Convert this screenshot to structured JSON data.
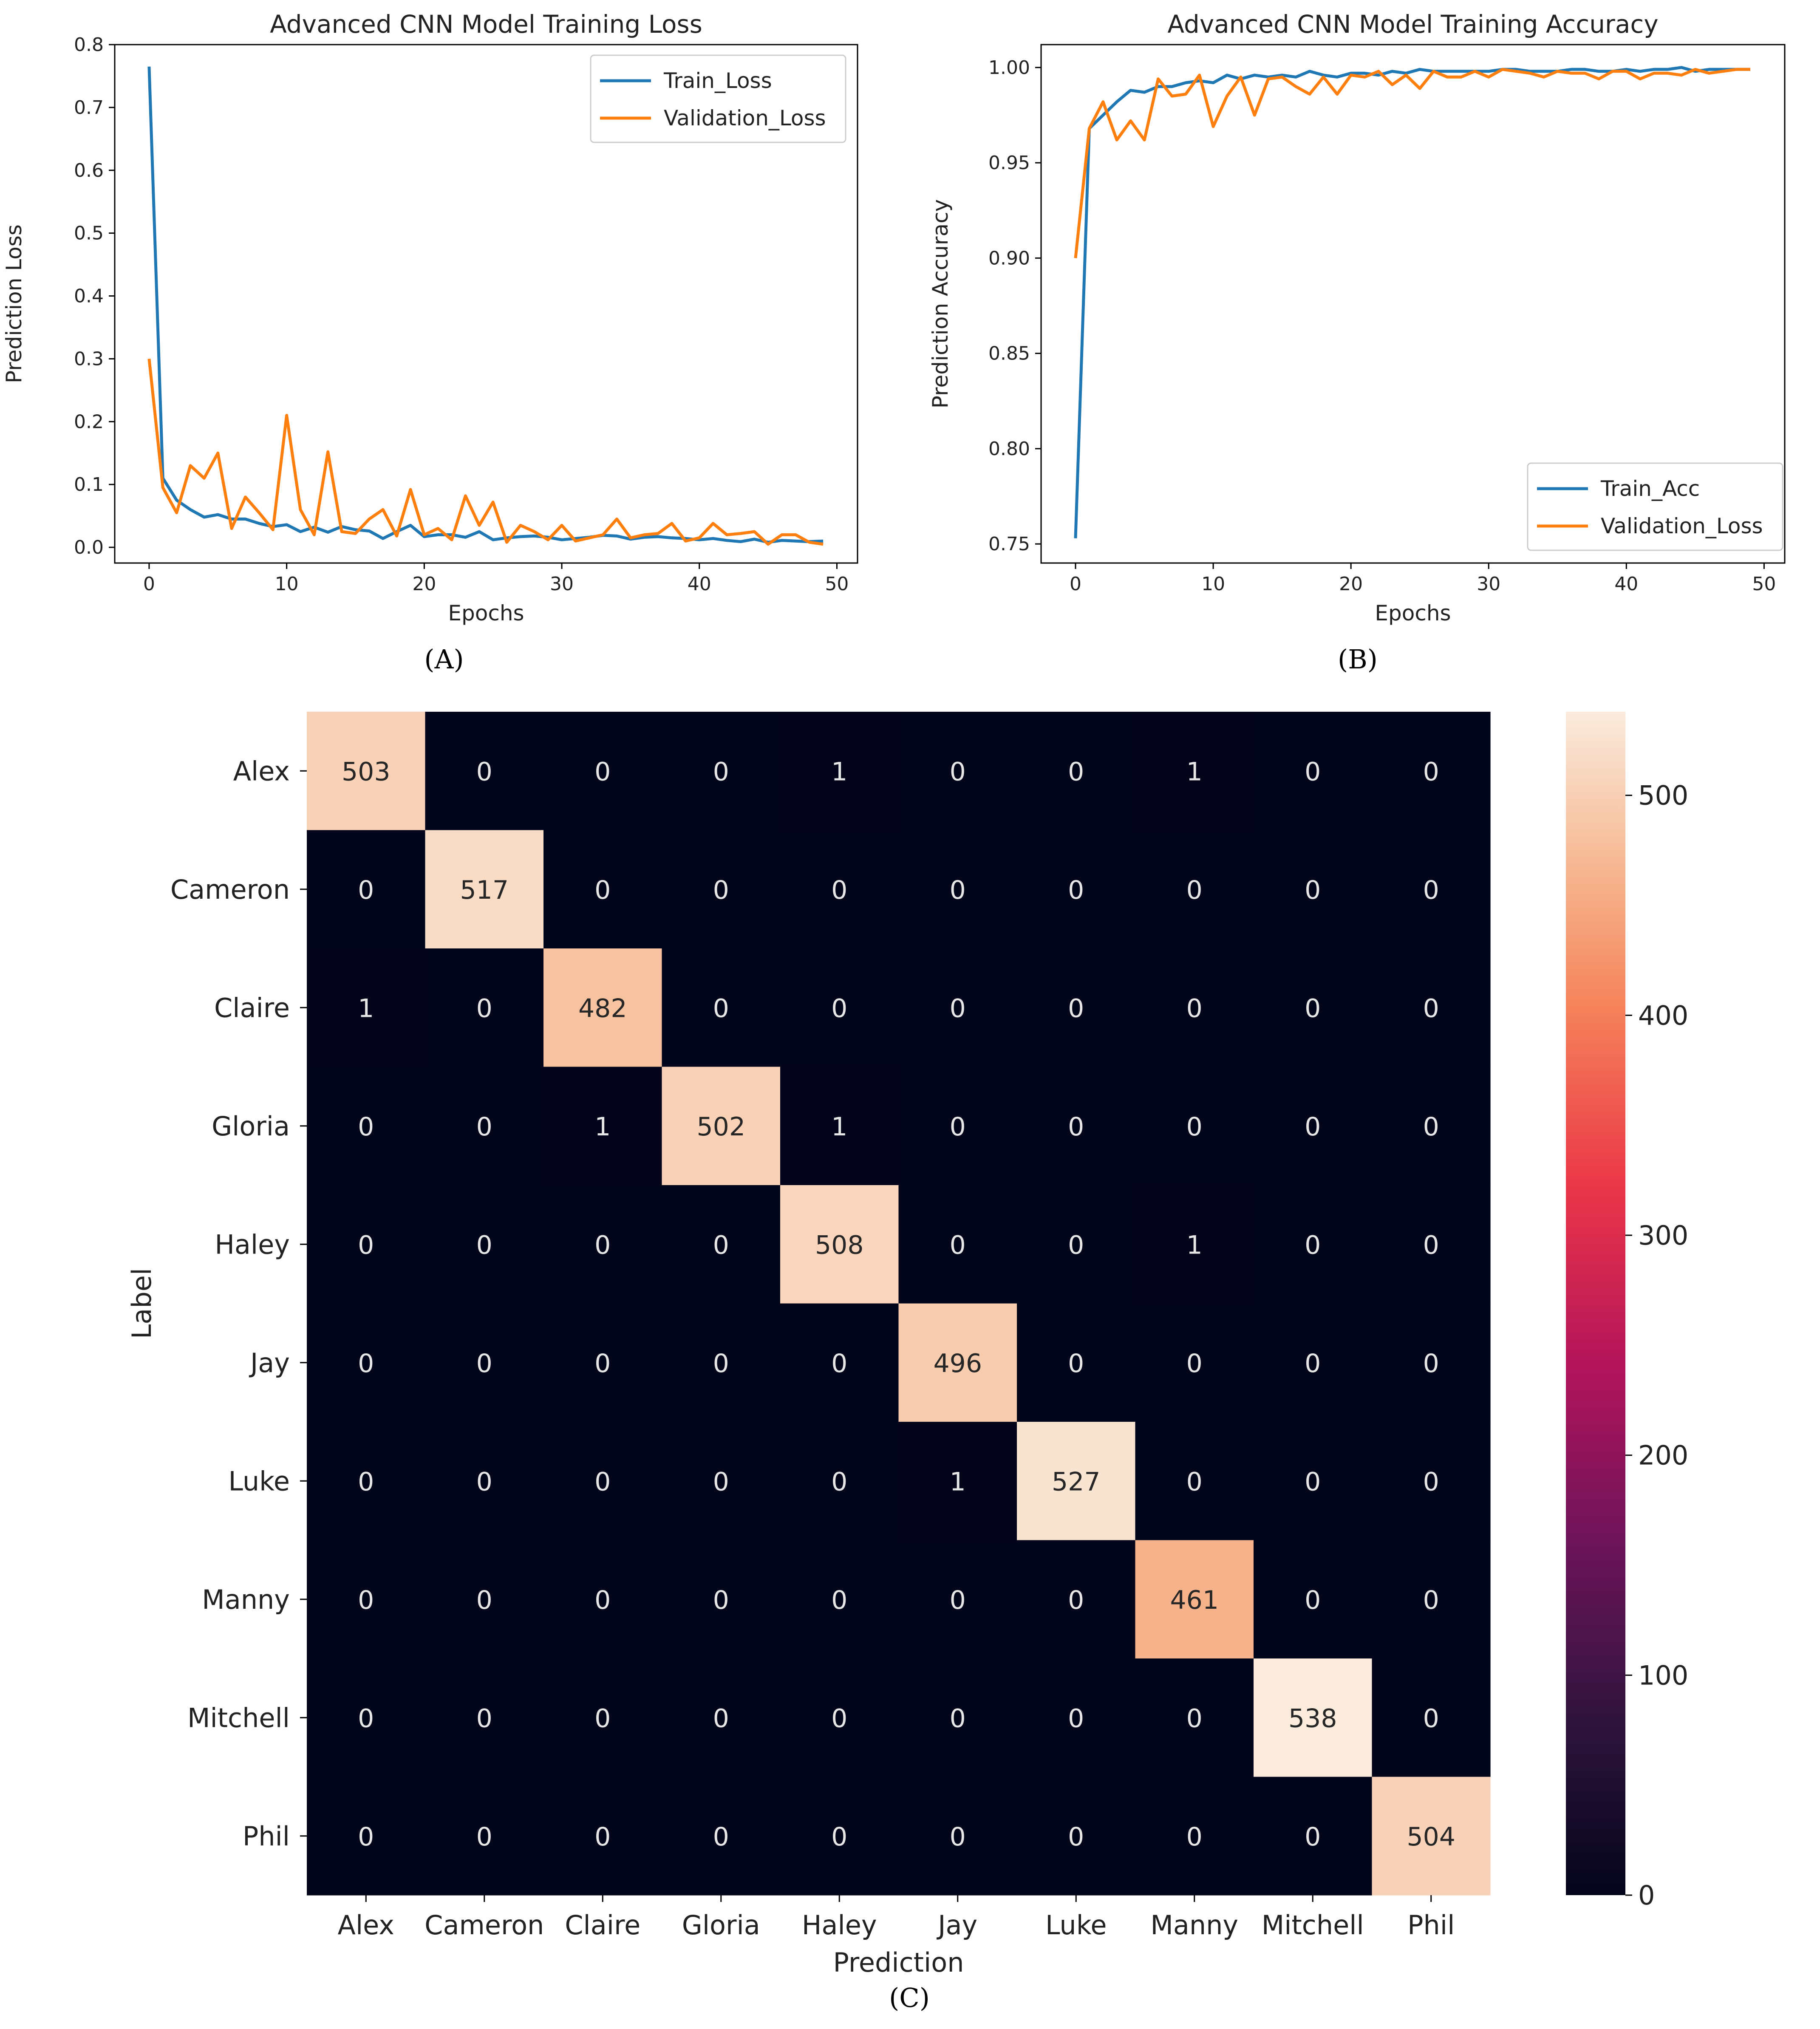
{
  "colors": {
    "train": "#1f77b4",
    "validation": "#ff7f0e"
  },
  "chart_data": [
    {
      "id": "A",
      "type": "line",
      "title": "Advanced CNN Model Training Loss",
      "xlabel": "Epochs",
      "ylabel": "Prediction Loss",
      "xlim": [
        -2.5,
        51.5
      ],
      "ylim": [
        -0.025,
        0.8
      ],
      "xticks": [
        0,
        10,
        20,
        30,
        40,
        50
      ],
      "yticks": [
        0.0,
        0.1,
        0.2,
        0.3,
        0.4,
        0.5,
        0.6,
        0.7,
        0.8
      ],
      "ytick_labels": [
        "0.0",
        "0.1",
        "0.2",
        "0.3",
        "0.4",
        "0.5",
        "0.6",
        "0.7",
        "0.8"
      ],
      "legend_position": "top-right",
      "series": [
        {
          "name": "Train_Loss",
          "color": "#1f77b4",
          "values": [
            0.765,
            0.11,
            0.075,
            0.06,
            0.048,
            0.052,
            0.045,
            0.045,
            0.038,
            0.033,
            0.036,
            0.025,
            0.032,
            0.024,
            0.033,
            0.028,
            0.026,
            0.014,
            0.025,
            0.035,
            0.017,
            0.02,
            0.02,
            0.016,
            0.025,
            0.012,
            0.015,
            0.017,
            0.018,
            0.016,
            0.012,
            0.014,
            0.016,
            0.019,
            0.018,
            0.013,
            0.016,
            0.017,
            0.015,
            0.014,
            0.012,
            0.014,
            0.011,
            0.009,
            0.013,
            0.008,
            0.011,
            0.01,
            0.009,
            0.01
          ]
        },
        {
          "name": "Validation_Loss",
          "color": "#ff7f0e",
          "values": [
            0.3,
            0.095,
            0.055,
            0.13,
            0.11,
            0.15,
            0.03,
            0.08,
            0.055,
            0.028,
            0.21,
            0.06,
            0.02,
            0.152,
            0.025,
            0.022,
            0.045,
            0.06,
            0.018,
            0.092,
            0.02,
            0.03,
            0.012,
            0.082,
            0.035,
            0.072,
            0.008,
            0.035,
            0.025,
            0.012,
            0.035,
            0.01,
            0.015,
            0.02,
            0.045,
            0.015,
            0.02,
            0.022,
            0.038,
            0.01,
            0.015,
            0.038,
            0.02,
            0.022,
            0.025,
            0.005,
            0.02,
            0.02,
            0.008,
            0.005
          ]
        }
      ]
    },
    {
      "id": "B",
      "type": "line",
      "title": "Advanced CNN Model Training Accuracy",
      "xlabel": "Epochs",
      "ylabel": "Prediction Accuracy",
      "xlim": [
        -2.5,
        51.5
      ],
      "ylim": [
        0.74,
        1.012
      ],
      "xticks": [
        0,
        10,
        20,
        30,
        40,
        50
      ],
      "yticks": [
        0.75,
        0.8,
        0.85,
        0.9,
        0.95,
        1.0
      ],
      "ytick_labels": [
        "0.75",
        "0.80",
        "0.85",
        "0.90",
        "0.95",
        "1.00"
      ],
      "legend_position": "bottom-right",
      "series": [
        {
          "name": "Train_Acc",
          "color": "#1f77b4",
          "values": [
            0.753,
            0.968,
            0.975,
            0.982,
            0.988,
            0.987,
            0.99,
            0.99,
            0.992,
            0.993,
            0.992,
            0.996,
            0.994,
            0.996,
            0.995,
            0.996,
            0.995,
            0.998,
            0.996,
            0.995,
            0.997,
            0.997,
            0.996,
            0.998,
            0.997,
            0.999,
            0.998,
            0.998,
            0.998,
            0.998,
            0.998,
            0.999,
            0.999,
            0.998,
            0.998,
            0.998,
            0.999,
            0.999,
            0.998,
            0.998,
            0.999,
            0.998,
            0.999,
            0.999,
            1.0,
            0.998,
            0.999,
            0.999,
            0.999,
            0.999
          ]
        },
        {
          "name": "Validation_Loss",
          "color": "#ff7f0e",
          "values": [
            0.9,
            0.968,
            0.982,
            0.962,
            0.972,
            0.962,
            0.994,
            0.985,
            0.986,
            0.996,
            0.969,
            0.985,
            0.995,
            0.975,
            0.994,
            0.995,
            0.99,
            0.986,
            0.995,
            0.986,
            0.996,
            0.995,
            0.998,
            0.991,
            0.996,
            0.989,
            0.998,
            0.995,
            0.995,
            0.998,
            0.995,
            0.999,
            0.998,
            0.997,
            0.995,
            0.998,
            0.997,
            0.997,
            0.994,
            0.998,
            0.998,
            0.994,
            0.997,
            0.997,
            0.996,
            0.999,
            0.997,
            0.998,
            0.999,
            0.999
          ]
        }
      ]
    },
    {
      "id": "C",
      "type": "heatmap",
      "xlabel": "Prediction",
      "ylabel": "Label",
      "labels": [
        "Alex",
        "Cameron",
        "Claire",
        "Gloria",
        "Haley",
        "Jay",
        "Luke",
        "Manny",
        "Mitchell",
        "Phil"
      ],
      "matrix": [
        [
          503,
          0,
          0,
          0,
          1,
          0,
          0,
          1,
          0,
          0
        ],
        [
          0,
          517,
          0,
          0,
          0,
          0,
          0,
          0,
          0,
          0
        ],
        [
          1,
          0,
          482,
          0,
          0,
          0,
          0,
          0,
          0,
          0
        ],
        [
          0,
          0,
          1,
          502,
          1,
          0,
          0,
          0,
          0,
          0
        ],
        [
          0,
          0,
          0,
          0,
          508,
          0,
          0,
          1,
          0,
          0
        ],
        [
          0,
          0,
          0,
          0,
          0,
          496,
          0,
          0,
          0,
          0
        ],
        [
          0,
          0,
          0,
          0,
          0,
          1,
          527,
          0,
          0,
          0
        ],
        [
          0,
          0,
          0,
          0,
          0,
          0,
          0,
          461,
          0,
          0
        ],
        [
          0,
          0,
          0,
          0,
          0,
          0,
          0,
          0,
          538,
          0
        ],
        [
          0,
          0,
          0,
          0,
          0,
          0,
          0,
          0,
          0,
          504
        ]
      ],
      "colorbar": {
        "min": 0,
        "max": 538,
        "ticks": [
          0,
          100,
          200,
          300,
          400,
          500
        ]
      }
    }
  ],
  "captions": {
    "a": "(A)",
    "b": "(B)",
    "c": "(C)"
  }
}
